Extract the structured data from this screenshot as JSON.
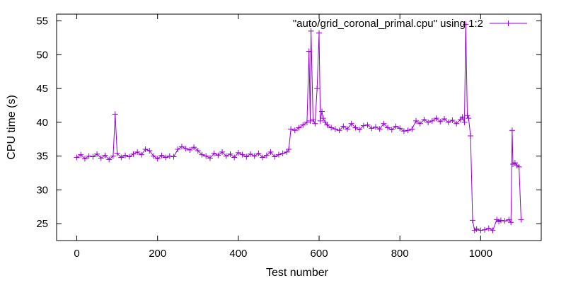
{
  "chart_data": {
    "type": "line",
    "xlabel": "Test number",
    "ylabel": "CPU time (s)",
    "xlim": [
      -50,
      1150
    ],
    "ylim": [
      22.5,
      56
    ],
    "x_ticks": [
      0,
      200,
      400,
      600,
      800,
      1000
    ],
    "y_ticks": [
      25,
      30,
      35,
      40,
      45,
      50,
      55
    ],
    "grid": false,
    "legend_position": "top-right",
    "color": "#9400d3",
    "series": [
      {
        "name": "\"auto/grid_coronal_primal.cpu\" using 1:2",
        "x": [
          0,
          10,
          20,
          30,
          40,
          50,
          60,
          70,
          80,
          90,
          95,
          100,
          110,
          120,
          130,
          140,
          150,
          160,
          170,
          180,
          190,
          200,
          210,
          220,
          230,
          240,
          250,
          260,
          270,
          280,
          290,
          300,
          310,
          320,
          330,
          340,
          350,
          360,
          370,
          380,
          390,
          400,
          410,
          420,
          430,
          440,
          450,
          460,
          470,
          480,
          490,
          500,
          510,
          520,
          525,
          530,
          540,
          550,
          560,
          570,
          575,
          578,
          580,
          585,
          590,
          595,
          600,
          603,
          607,
          610,
          615,
          620,
          630,
          640,
          650,
          660,
          670,
          680,
          690,
          700,
          710,
          720,
          730,
          740,
          750,
          760,
          770,
          780,
          790,
          800,
          810,
          820,
          830,
          840,
          850,
          860,
          870,
          880,
          890,
          900,
          910,
          920,
          930,
          940,
          950,
          955,
          960,
          963,
          967,
          970,
          975,
          980,
          985,
          990,
          1000,
          1010,
          1020,
          1030,
          1040,
          1045,
          1050,
          1060,
          1070,
          1075,
          1078,
          1080,
          1085,
          1090,
          1095,
          1100
        ],
        "y": [
          34.8,
          35.2,
          34.6,
          35.0,
          34.9,
          35.3,
          34.7,
          35.1,
          34.5,
          35.0,
          41.2,
          35.4,
          34.8,
          35.1,
          34.9,
          35.3,
          35.6,
          35.2,
          36.0,
          35.8,
          35.0,
          34.6,
          35.1,
          34.8,
          35.0,
          34.9,
          36.0,
          36.4,
          36.1,
          35.9,
          36.3,
          35.8,
          35.2,
          35.0,
          34.7,
          35.4,
          35.1,
          35.6,
          35.0,
          35.3,
          34.8,
          35.5,
          35.2,
          34.9,
          35.3,
          35.0,
          35.4,
          34.8,
          35.1,
          35.6,
          34.9,
          35.2,
          35.4,
          35.6,
          36.0,
          39.0,
          38.8,
          39.2,
          39.6,
          40.0,
          50.5,
          40.2,
          53.5,
          40.4,
          39.8,
          45.0,
          53.2,
          40.2,
          41.6,
          40.6,
          40.0,
          39.6,
          39.2,
          39.0,
          38.8,
          39.4,
          39.0,
          39.8,
          39.2,
          38.9,
          39.5,
          39.6,
          39.1,
          39.3,
          39.0,
          39.8,
          39.2,
          38.9,
          39.4,
          39.1,
          38.7,
          38.8,
          39.0,
          40.2,
          39.8,
          40.4,
          40.0,
          40.2,
          40.6,
          40.1,
          40.5,
          40.0,
          40.3,
          39.8,
          40.4,
          40.8,
          40.0,
          54.5,
          41.0,
          40.6,
          38.0,
          25.5,
          24.0,
          24.2,
          24.0,
          24.1,
          24.3,
          24.0,
          25.6,
          25.3,
          25.5,
          25.4,
          25.6,
          25.2,
          38.8,
          33.8,
          34.0,
          33.6,
          33.4,
          25.6
        ]
      }
    ]
  }
}
